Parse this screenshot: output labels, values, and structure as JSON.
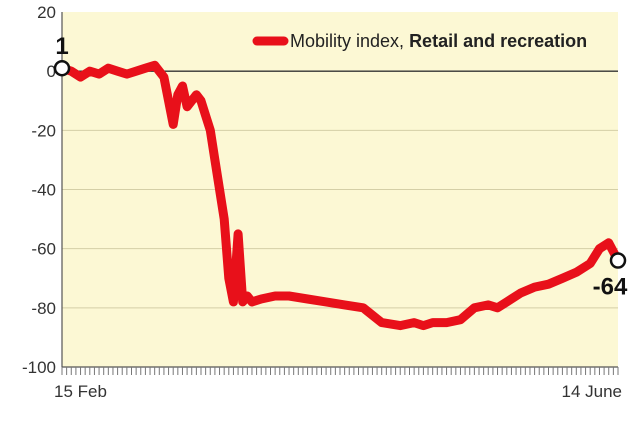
{
  "chart_data": {
    "type": "line",
    "title": "",
    "xlabel": "",
    "ylabel": "",
    "legend": {
      "prefix": "Mobility index, ",
      "bold": "Retail and recreation",
      "position": "top-right"
    },
    "x_tick_labels": {
      "start": "15 Feb",
      "end": "14 June"
    },
    "y_ticks": [
      20,
      0,
      -20,
      -40,
      -60,
      -80,
      -100
    ],
    "y_tick_labels": [
      "20",
      "0",
      "-20",
      "-40",
      "-60",
      "-80",
      "-100"
    ],
    "ylim": [
      -100,
      20
    ],
    "start_date": "2020-02-15",
    "end_date": "2020-06-14",
    "series": [
      {
        "name": "Mobility index, Retail and recreation",
        "color": "#e8101a",
        "x": [
          "2020-02-15",
          "2020-02-17",
          "2020-02-19",
          "2020-02-21",
          "2020-02-23",
          "2020-02-25",
          "2020-02-27",
          "2020-02-29",
          "2020-03-02",
          "2020-03-04",
          "2020-03-06",
          "2020-03-08",
          "2020-03-10",
          "2020-03-11",
          "2020-03-12",
          "2020-03-13",
          "2020-03-15",
          "2020-03-16",
          "2020-03-17",
          "2020-03-18",
          "2020-03-19",
          "2020-03-21",
          "2020-03-22",
          "2020-03-23",
          "2020-03-24",
          "2020-03-25",
          "2020-03-26",
          "2020-03-27",
          "2020-03-29",
          "2020-04-01",
          "2020-04-04",
          "2020-04-08",
          "2020-04-12",
          "2020-04-16",
          "2020-04-20",
          "2020-04-24",
          "2020-04-28",
          "2020-05-01",
          "2020-05-03",
          "2020-05-05",
          "2020-05-08",
          "2020-05-11",
          "2020-05-14",
          "2020-05-17",
          "2020-05-19",
          "2020-05-21",
          "2020-05-24",
          "2020-05-27",
          "2020-05-30",
          "2020-06-02",
          "2020-06-05",
          "2020-06-08",
          "2020-06-10",
          "2020-06-12",
          "2020-06-14"
        ],
        "values": [
          1,
          0,
          -2,
          0,
          -1,
          1,
          0,
          -1,
          0,
          1,
          2,
          -2,
          -18,
          -8,
          -5,
          -12,
          -8,
          -10,
          -15,
          -20,
          -30,
          -50,
          -70,
          -78,
          -55,
          -78,
          -76,
          -78,
          -77,
          -76,
          -76,
          -77,
          -78,
          -79,
          -80,
          -85,
          -86,
          -85,
          -86,
          -85,
          -85,
          -84,
          -80,
          -79,
          -80,
          -78,
          -75,
          -73,
          -72,
          -70,
          -68,
          -65,
          -60,
          -58,
          -64
        ]
      }
    ],
    "annotations": [
      {
        "text": "1",
        "x": "2020-02-15",
        "y": 1
      },
      {
        "text": "-64",
        "x": "2020-06-14",
        "y": -64
      }
    ]
  }
}
